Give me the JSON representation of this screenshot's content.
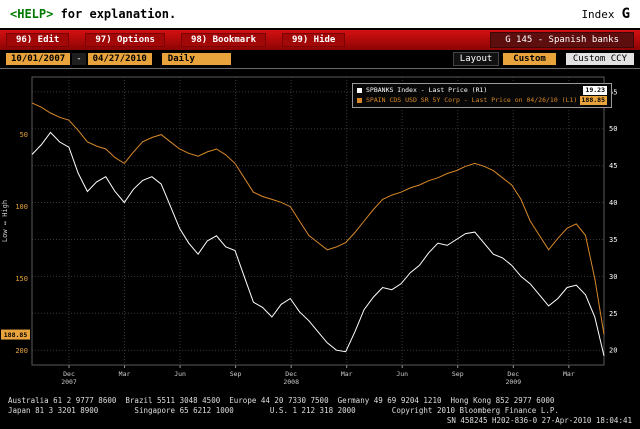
{
  "topbar": {
    "help_key": "<HELP>",
    "help_rest": " for explanation.",
    "context": "Index",
    "function_key": "G"
  },
  "menubar": {
    "items": [
      {
        "label": "96) Edit"
      },
      {
        "label": "97) Options"
      },
      {
        "label": "98) Bookmark"
      },
      {
        "label": "99) Hide"
      }
    ],
    "title": "G 145 - Spanish banks"
  },
  "toolbar": {
    "date_from": "10/01/2007",
    "date_separator": "-",
    "date_to": "04/27/2010",
    "period": "Daily",
    "layout_label": "Layout",
    "custom_label": "Custom",
    "ccy_label": "Custom CCY"
  },
  "chart_data": {
    "type": "line",
    "title": "G 145 - Spanish banks",
    "x_range": [
      "10/01/2007",
      "04/27/2010"
    ],
    "months_span": 30.9,
    "grid": true,
    "legend_position": "top-right",
    "x_labels": [
      {
        "text": "Dec",
        "year": "2007",
        "m": 2
      },
      {
        "text": "Mar",
        "m": 5
      },
      {
        "text": "Jun",
        "m": 8
      },
      {
        "text": "Sep",
        "m": 11
      },
      {
        "text": "Dec",
        "year": "2008",
        "m": 14
      },
      {
        "text": "Mar",
        "m": 17
      },
      {
        "text": "Jun",
        "m": 20
      },
      {
        "text": "Sep",
        "m": 23
      },
      {
        "text": "Dec",
        "year": "2009",
        "m": 26
      },
      {
        "text": "Mar",
        "m": 29
      }
    ],
    "left_axis": {
      "label": "Low ↔ High",
      "ticks": [
        50,
        100,
        150,
        200
      ],
      "min": 10,
      "max": 210,
      "inverted": true,
      "color": "#e8a33d",
      "last_value": 188.85
    },
    "right_axis": {
      "ticks": [
        55,
        50,
        45,
        40,
        35,
        30,
        25,
        20
      ],
      "min": 18,
      "max": 57,
      "color": "#ffffff",
      "last_value": 19.23
    },
    "series": [
      {
        "name": "SPBANKS Index - Last Price (R1)",
        "axis": "right",
        "color": "#ffffff",
        "last": "19.23",
        "values": [
          46.5,
          47.8,
          49.5,
          48.2,
          47.5,
          44.0,
          41.5,
          42.8,
          43.5,
          41.5,
          40.0,
          41.8,
          43.0,
          43.5,
          42.5,
          39.5,
          36.5,
          34.5,
          33.0,
          34.8,
          35.5,
          34.0,
          33.5,
          30.0,
          26.5,
          25.8,
          24.5,
          26.2,
          27.0,
          25.2,
          24.0,
          22.5,
          21.0,
          20.0,
          19.8,
          22.5,
          25.5,
          27.2,
          28.5,
          28.2,
          29.0,
          30.5,
          31.5,
          33.2,
          34.5,
          34.2,
          35.0,
          35.8,
          36.0,
          34.5,
          33.0,
          32.5,
          31.5,
          30.0,
          29.0,
          27.5,
          26.0,
          27.0,
          28.5,
          28.8,
          27.5,
          24.5,
          19.23
        ]
      },
      {
        "name": "SPAIN CDS USD SR 5Y Corp - Last Price on 04/26/10 (L1)",
        "axis": "left",
        "color": "#d8882a",
        "last": "188.85",
        "values": [
          28,
          31,
          35,
          38,
          40,
          47,
          55,
          58,
          60,
          66,
          70,
          62,
          55,
          52,
          50,
          55,
          60,
          63,
          65,
          62,
          60,
          64,
          70,
          80,
          90,
          93,
          95,
          97,
          100,
          110,
          120,
          125,
          130,
          128,
          125,
          118,
          110,
          102,
          95,
          92,
          90,
          87,
          85,
          82,
          80,
          77,
          75,
          72,
          70,
          72,
          75,
          80,
          85,
          95,
          110,
          120,
          130,
          122,
          115,
          112,
          120,
          150,
          188.85
        ]
      }
    ]
  },
  "footer": {
    "line1": "Australia 61 2 9777 8600  Brazil 5511 3048 4500  Europe 44 20 7330 7500  Germany 49 69 9204 1210  Hong Kong 852 2977 6000",
    "line2": "Japan 81 3 3201 8900        Singapore 65 6212 1000        U.S. 1 212 318 2000        Copyright 2010 Bloomberg Finance L.P.",
    "line3": "SN 458245 H202-836-0 27-Apr-2010 18:04:41"
  }
}
